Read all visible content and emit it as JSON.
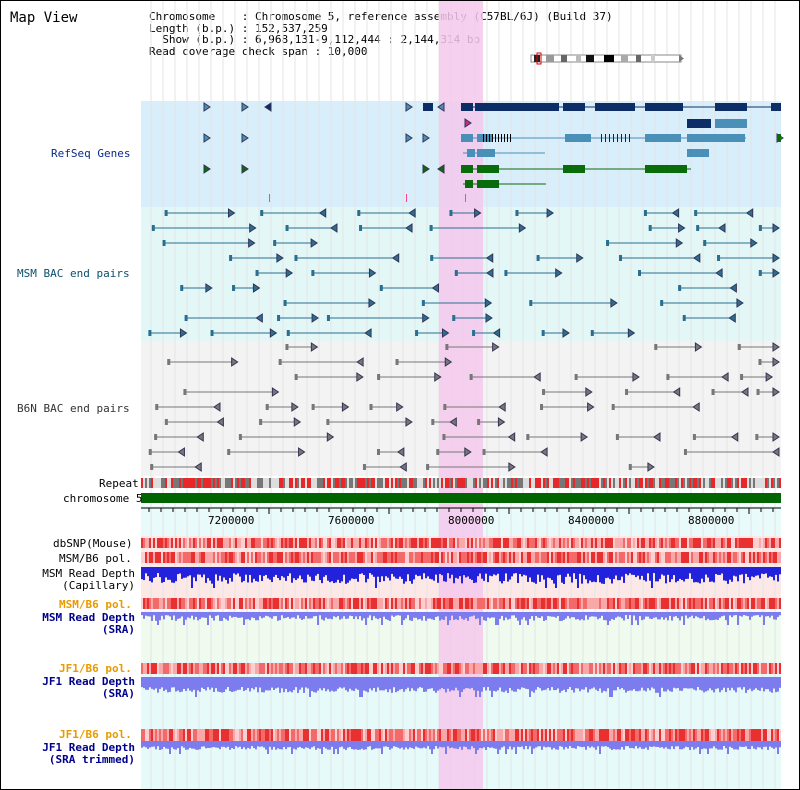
{
  "title": "Map View",
  "info": {
    "chromosome": "Chromosome    : Chromosome 5, reference assembly (C57BL/6J) (Build 37)",
    "length": "Length (b.p.) : 152,537,259",
    "show": "  Show (b.p.) : 6,968,131-9,112,444 : 2,144,314 bp",
    "coverage": "Read coverage check span : 10,000"
  },
  "tracks": {
    "refseq": "RefSeq Genes",
    "msm_bac": "MSM BAC end pairs",
    "b6n_bac": "B6N BAC end pairs",
    "repeat": "Repeat",
    "chromosome": "chromosome 5",
    "dbsnp": "dbSNP(Mouse)",
    "msm_b6_pol_cap": "MSM/B6 pol.",
    "msm_depth_cap_1": "MSM Read Depth",
    "msm_depth_cap_2": "(Capillary)",
    "msm_b6_pol_sra": "MSM/B6 pol.",
    "msm_depth_sra_1": "MSM Read Depth",
    "msm_depth_sra_2": "(SRA)",
    "jf1_b6_pol": "JF1/B6 pol.",
    "jf1_depth_1": "JF1 Read Depth",
    "jf1_depth_2": "(SRA)",
    "jf1_b6_pol_trim": "JF1/B6 pol.",
    "jf1_depth_trim_1": "JF1 Read Depth",
    "jf1_depth_trim_2": "(SRA trimmed)"
  },
  "axis_ticks": [
    "7200000",
    "7600000",
    "8000000",
    "8400000",
    "8800000"
  ],
  "colors": {
    "highlight": "#f5c8ec",
    "refseq_bg": "#d8eefa",
    "msm_bg": "#e3f7f7",
    "b6n_bg": "#f3f3f3",
    "gene_navy": "#0d2d66",
    "gene_blue": "#4a8fb8",
    "gene_green": "#0a6b0a",
    "msm_pair": "#2a6f90",
    "b6n_pair": "#777777",
    "chromosome_bar": "#006400",
    "depth_blue": "#2222dd",
    "depth_light": "#7c7cee",
    "pol_red": "#e83030"
  }
}
